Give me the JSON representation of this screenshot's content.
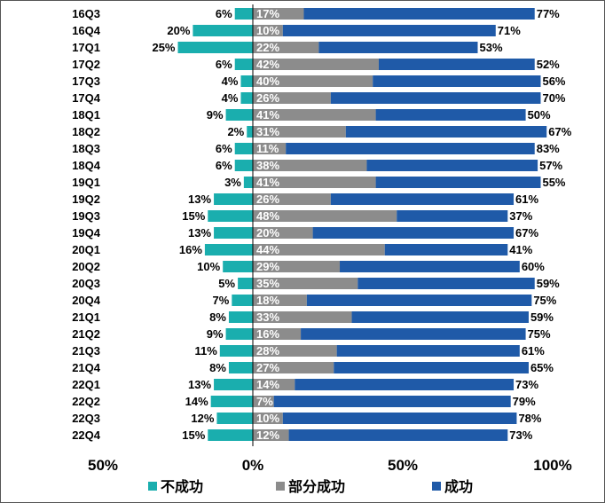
{
  "chart_data": {
    "type": "bar",
    "orientation": "horizontal",
    "stacked": true,
    "categories": [
      "16Q3",
      "16Q4",
      "17Q1",
      "17Q2",
      "17Q3",
      "17Q4",
      "18Q1",
      "18Q2",
      "18Q3",
      "18Q4",
      "19Q1",
      "19Q2",
      "19Q3",
      "19Q4",
      "20Q1",
      "20Q2",
      "20Q3",
      "20Q4",
      "21Q1",
      "21Q2",
      "21Q3",
      "21Q4",
      "22Q1",
      "22Q2",
      "22Q3",
      "22Q4"
    ],
    "series": [
      {
        "name": "不成功",
        "color": "#1aaeae",
        "values": [
          6,
          20,
          25,
          6,
          4,
          4,
          9,
          2,
          6,
          6,
          3,
          13,
          15,
          13,
          16,
          10,
          5,
          7,
          8,
          9,
          11,
          8,
          13,
          14,
          12,
          15
        ]
      },
      {
        "name": "部分成功",
        "color": "#8c8c8c",
        "values": [
          17,
          10,
          22,
          42,
          40,
          26,
          41,
          31,
          11,
          38,
          41,
          26,
          48,
          20,
          44,
          29,
          35,
          18,
          33,
          16,
          28,
          27,
          14,
          7,
          10,
          12
        ]
      },
      {
        "name": "成功",
        "color": "#1f5aa8",
        "values": [
          77,
          71,
          53,
          52,
          56,
          70,
          50,
          67,
          83,
          57,
          55,
          61,
          37,
          67,
          41,
          60,
          59,
          75,
          59,
          75,
          61,
          65,
          73,
          79,
          78,
          73
        ]
      }
    ],
    "x_ticks": [
      "50%",
      "0%",
      "50%",
      "100%"
    ],
    "xlim": [
      -50,
      100
    ],
    "legend_position": "bottom",
    "title": "",
    "xlabel": "",
    "ylabel": ""
  }
}
